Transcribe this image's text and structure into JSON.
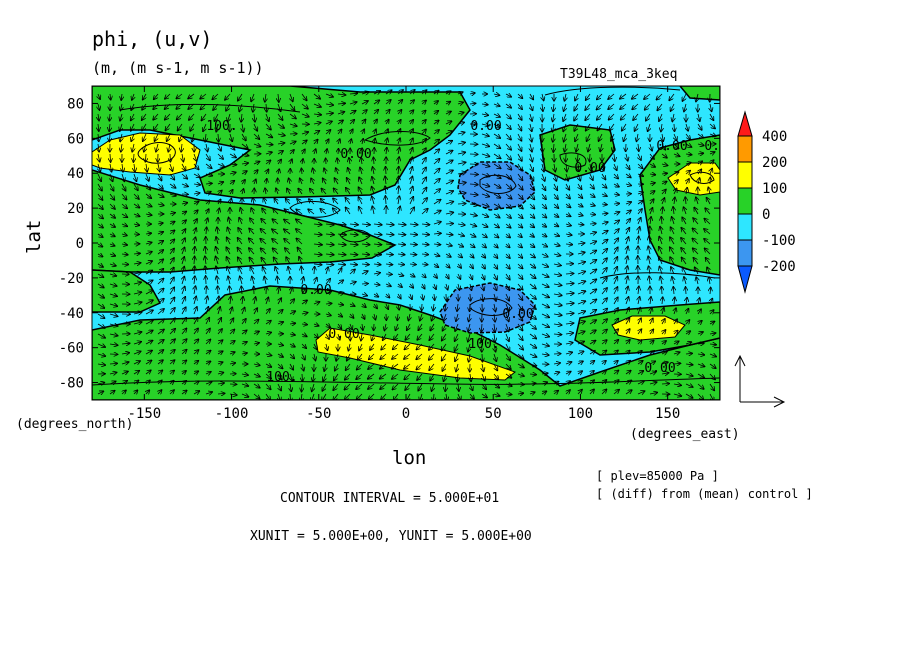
{
  "header": {
    "title": "phi, (u,v)",
    "units": "(m, (m s-1, m s-1))",
    "run": "T39L48_mca_3keq"
  },
  "footer": {
    "contour_interval": "CONTOUR INTERVAL = 5.000E+01",
    "vector_units": "XUNIT = 5.000E+00, YUNIT = 5.000E+00",
    "level": "[ plev=85000 Pa ]",
    "diff": "[ (diff) from (mean) control ]"
  },
  "colors": {
    "ocean": "#2ee6ff",
    "green": "#28d228",
    "yellow": "#ffff00",
    "blue": "#3c96f0",
    "orange": "#ff9a00",
    "red": "#ff1a1a",
    "dark_blue": "#0a5aff"
  },
  "chart_data": {
    "type": "heatmap",
    "variable": "phi, (u,v)",
    "xlabel": "lon",
    "ylabel": "lat",
    "x_unit_label": "(degrees_east)",
    "y_unit_label": "(degrees_north)",
    "xlim": [
      -180,
      180
    ],
    "ylim": [
      -90,
      90
    ],
    "xticks": [
      -150,
      -100,
      -50,
      0,
      50,
      100,
      150
    ],
    "yticks": [
      80,
      60,
      40,
      20,
      0,
      -20,
      -40,
      -60,
      -80
    ],
    "colorbar": {
      "levels": [
        "400",
        "200",
        "100",
        "0",
        "-100",
        "-200"
      ]
    },
    "contour_labels": [
      "100.",
      "0.00",
      "0.00",
      "0.00",
      "0.00",
      "0.00",
      "0.00",
      "100.",
      "100.",
      "0.00",
      "0.00",
      "0.00"
    ],
    "regions": [
      {
        "level": "0 to 100",
        "lon": [
          -180,
          -110
        ],
        "lat": [
          20,
          80
        ]
      },
      {
        "level": "100 to 200",
        "lon": [
          -180,
          -130
        ],
        "lat": [
          42,
          65
        ]
      },
      {
        "level": "0 to 100",
        "lon": [
          -180,
          -85
        ],
        "lat": [
          -50,
          -10
        ]
      },
      {
        "level": "0 to 100",
        "lon": [
          -125,
          40
        ],
        "lat": [
          -75,
          -30
        ]
      },
      {
        "level": "100 to 200",
        "lon": [
          -55,
          40
        ],
        "lat": [
          -75,
          -53
        ]
      },
      {
        "level": "-200 to -100",
        "lon": [
          25,
          75
        ],
        "lat": [
          18,
          45
        ]
      },
      {
        "level": "-200 to -100",
        "lon": [
          20,
          70
        ],
        "lat": [
          -52,
          -22
        ]
      },
      {
        "level": "0 to 100",
        "lon": [
          75,
          180
        ],
        "lat": [
          -85,
          -40
        ]
      },
      {
        "level": "100 to 200",
        "lon": [
          112,
          165
        ],
        "lat": [
          -60,
          -45
        ]
      },
      {
        "level": "0 to 100",
        "lon": [
          130,
          180
        ],
        "lat": [
          15,
          65
        ]
      },
      {
        "level": "100 to 200",
        "lon": [
          148,
          178
        ],
        "lat": [
          28,
          45
        ]
      }
    ]
  }
}
